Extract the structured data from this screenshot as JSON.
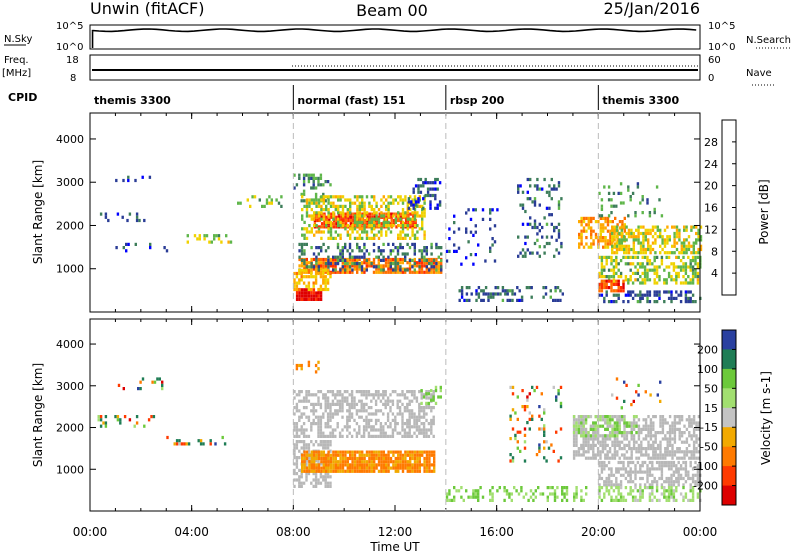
{
  "header": {
    "station": "Unwin (fitACF)",
    "beam": "Beam 00",
    "date": "25/Jan/2016"
  },
  "sky_panel": {
    "left_label": "N.Sky",
    "tick_top": "10^5",
    "tick_bottom": "10^0",
    "right_label": "N.Search",
    "right_tick_top": "10^5",
    "right_tick_bottom": "10^0"
  },
  "freq_panel": {
    "left_label_line1": "Freq.",
    "left_label_line2": "[MHz]",
    "tick_top": "18",
    "tick_bottom": "8",
    "right_label": "Nave",
    "right_tick_top": "60",
    "right_tick_bottom": "0"
  },
  "cpid_panel": {
    "label": "CPID",
    "segments": [
      {
        "name": "themis 3300",
        "start_hour": 0,
        "end_hour": 8
      },
      {
        "name": "normal (fast) 151",
        "start_hour": 8,
        "end_hour": 14
      },
      {
        "name": "rbsp 200",
        "start_hour": 14,
        "end_hour": 20
      },
      {
        "name": "themis 3300",
        "start_hour": 20,
        "end_hour": 24
      }
    ]
  },
  "time_axis": {
    "xlabel": "Time UT",
    "tick_labels": [
      "00:00",
      "04:00",
      "08:00",
      "12:00",
      "16:00",
      "20:00",
      "00:00"
    ],
    "tick_hours": [
      0,
      4,
      8,
      12,
      16,
      20,
      24
    ]
  },
  "colors": {
    "power_scale": [
      "#0000ff",
      "#2a3c96",
      "#3d7d5a",
      "#5fb64a",
      "#f0d200",
      "#ffaa00",
      "#ff7000",
      "#ff3000",
      "#e00000"
    ],
    "velocity_scale": [
      "#2a40a0",
      "#1f7d55",
      "#6cc93a",
      "#a2df70",
      "#c4c4c4",
      "#f2a900",
      "#ff7a00",
      "#ff3a00",
      "#dd0000"
    ],
    "ground_scatter": "#b8b8b8"
  },
  "chart_data": [
    {
      "type": "heatmap",
      "title": "",
      "xlabel": "Time UT",
      "ylabel": "Slant Range [km]",
      "xlim": [
        0,
        24
      ],
      "ylim": [
        0,
        4600
      ],
      "yticks": [
        1000,
        2000,
        3000,
        4000
      ],
      "colorbar": {
        "label": "Power [dB]",
        "ticks": [
          "4",
          "8",
          "12",
          "16",
          "20",
          "24",
          "28"
        ],
        "tick_values": [
          4,
          8,
          12,
          16,
          20,
          24,
          28
        ],
        "range": [
          0,
          32
        ]
      },
      "regions": [
        {
          "t": [
            0.2,
            2.2
          ],
          "r": [
            2100,
            2300
          ],
          "value": 6,
          "density": 0.25
        },
        {
          "t": [
            0.8,
            2.5
          ],
          "r": [
            2950,
            3150
          ],
          "value": 5,
          "density": 0.2
        },
        {
          "t": [
            1.0,
            3.0
          ],
          "r": [
            1400,
            1600
          ],
          "value": 6,
          "density": 0.15
        },
        {
          "t": [
            3.8,
            5.5
          ],
          "r": [
            1650,
            1800
          ],
          "value": 14,
          "density": 0.4
        },
        {
          "t": [
            5.5,
            7.5
          ],
          "r": [
            2450,
            2700
          ],
          "value": 14,
          "density": 0.2
        },
        {
          "t": [
            8.0,
            9.5
          ],
          "r": [
            2600,
            3200
          ],
          "value": 10,
          "density": 0.35
        },
        {
          "t": [
            8.8,
            12.8
          ],
          "r": [
            1950,
            2300
          ],
          "value": 26,
          "density": 0.9
        },
        {
          "t": [
            8.3,
            13.2
          ],
          "r": [
            1700,
            2700
          ],
          "value": 15,
          "density": 0.5
        },
        {
          "t": [
            12.5,
            13.8
          ],
          "r": [
            2400,
            3100
          ],
          "value": 6,
          "density": 0.4
        },
        {
          "t": [
            8.2,
            13.8
          ],
          "r": [
            900,
            1250
          ],
          "value": 22,
          "density": 0.85
        },
        {
          "t": [
            8.2,
            13.8
          ],
          "r": [
            1000,
            1600
          ],
          "value": 8,
          "density": 0.35
        },
        {
          "t": [
            8.1,
            9.1
          ],
          "r": [
            300,
            550
          ],
          "value": 30,
          "density": 0.95
        },
        {
          "t": [
            8.0,
            9.5
          ],
          "r": [
            550,
            1000
          ],
          "value": 18,
          "density": 0.5
        },
        {
          "t": [
            14.0,
            16.0
          ],
          "r": [
            1100,
            2400
          ],
          "value": 5,
          "density": 0.1
        },
        {
          "t": [
            14.5,
            17.5
          ],
          "r": [
            300,
            600
          ],
          "value": 7,
          "density": 0.35
        },
        {
          "t": [
            16.8,
            18.5
          ],
          "r": [
            1300,
            3100
          ],
          "value": 7,
          "density": 0.2
        },
        {
          "t": [
            17.8,
            18.6
          ],
          "r": [
            300,
            600
          ],
          "value": 8,
          "density": 0.35
        },
        {
          "t": [
            19.2,
            21.0
          ],
          "r": [
            1500,
            2200
          ],
          "value": 20,
          "density": 0.6
        },
        {
          "t": [
            20.5,
            24.0
          ],
          "r": [
            1400,
            2000
          ],
          "value": 16,
          "density": 0.6
        },
        {
          "t": [
            20.0,
            24.0
          ],
          "r": [
            700,
            1300
          ],
          "value": 14,
          "density": 0.5
        },
        {
          "t": [
            20.0,
            21.0
          ],
          "r": [
            500,
            750
          ],
          "value": 26,
          "density": 0.7
        },
        {
          "t": [
            20.0,
            24.0
          ],
          "r": [
            250,
            500
          ],
          "value": 7,
          "density": 0.45
        },
        {
          "t": [
            20.0,
            22.5
          ],
          "r": [
            2200,
            3000
          ],
          "value": 10,
          "density": 0.15
        }
      ]
    },
    {
      "type": "heatmap",
      "title": "",
      "xlabel": "Time UT",
      "ylabel": "Slant Range [km]",
      "xlim": [
        0,
        24
      ],
      "ylim": [
        0,
        4600
      ],
      "yticks": [
        1000,
        2000,
        3000,
        4000
      ],
      "colorbar": {
        "label": "Velocity [m s-1]",
        "ticks": [
          "200",
          "100",
          "50",
          "15",
          "-15",
          "-50",
          "-100",
          "-200"
        ],
        "tick_values": [
          200,
          100,
          50,
          15,
          -15,
          -50,
          -100,
          -200
        ],
        "range": [
          -250,
          250
        ]
      },
      "regions": [
        {
          "t": [
            0.2,
            2.5
          ],
          "r": [
            2050,
            2300
          ],
          "value": 0,
          "density": 0.25,
          "mixed": true
        },
        {
          "t": [
            1.0,
            3.0
          ],
          "r": [
            2950,
            3200
          ],
          "value": 0,
          "density": 0.2,
          "mixed": true
        },
        {
          "t": [
            3.0,
            5.5
          ],
          "r": [
            1600,
            1800
          ],
          "value": 0,
          "density": 0.25,
          "mixed": true
        },
        {
          "t": [
            8.0,
            13.5
          ],
          "r": [
            1800,
            2900
          ],
          "value": 0,
          "density": 0.55,
          "ground": true
        },
        {
          "t": [
            8.0,
            9.5
          ],
          "r": [
            600,
            1700
          ],
          "value": 0,
          "density": 0.55,
          "ground": true
        },
        {
          "t": [
            8.3,
            13.5
          ],
          "r": [
            950,
            1450
          ],
          "value": -60,
          "density": 0.9
        },
        {
          "t": [
            8.0,
            9.0
          ],
          "r": [
            3300,
            3600
          ],
          "value": -60,
          "density": 0.3
        },
        {
          "t": [
            13.0,
            13.8
          ],
          "r": [
            2600,
            3000
          ],
          "value": 60,
          "density": 0.3
        },
        {
          "t": [
            14.0,
            19.5
          ],
          "r": [
            250,
            600
          ],
          "value": 50,
          "density": 0.35
        },
        {
          "t": [
            16.5,
            18.5
          ],
          "r": [
            1200,
            3000
          ],
          "value": 0,
          "density": 0.15,
          "mixed": true
        },
        {
          "t": [
            19.0,
            24.0
          ],
          "r": [
            1300,
            2300
          ],
          "value": 0,
          "density": 0.6,
          "ground": true
        },
        {
          "t": [
            19.0,
            21.5
          ],
          "r": [
            1800,
            2300
          ],
          "value": 40,
          "density": 0.45
        },
        {
          "t": [
            20.0,
            24.0
          ],
          "r": [
            600,
            1200
          ],
          "value": 0,
          "density": 0.55,
          "ground": true
        },
        {
          "t": [
            20.0,
            24.0
          ],
          "r": [
            250,
            600
          ],
          "value": 30,
          "density": 0.5
        },
        {
          "t": [
            20.5,
            22.5
          ],
          "r": [
            2500,
            3200
          ],
          "value": 0,
          "density": 0.1,
          "mixed": true
        }
      ]
    }
  ]
}
